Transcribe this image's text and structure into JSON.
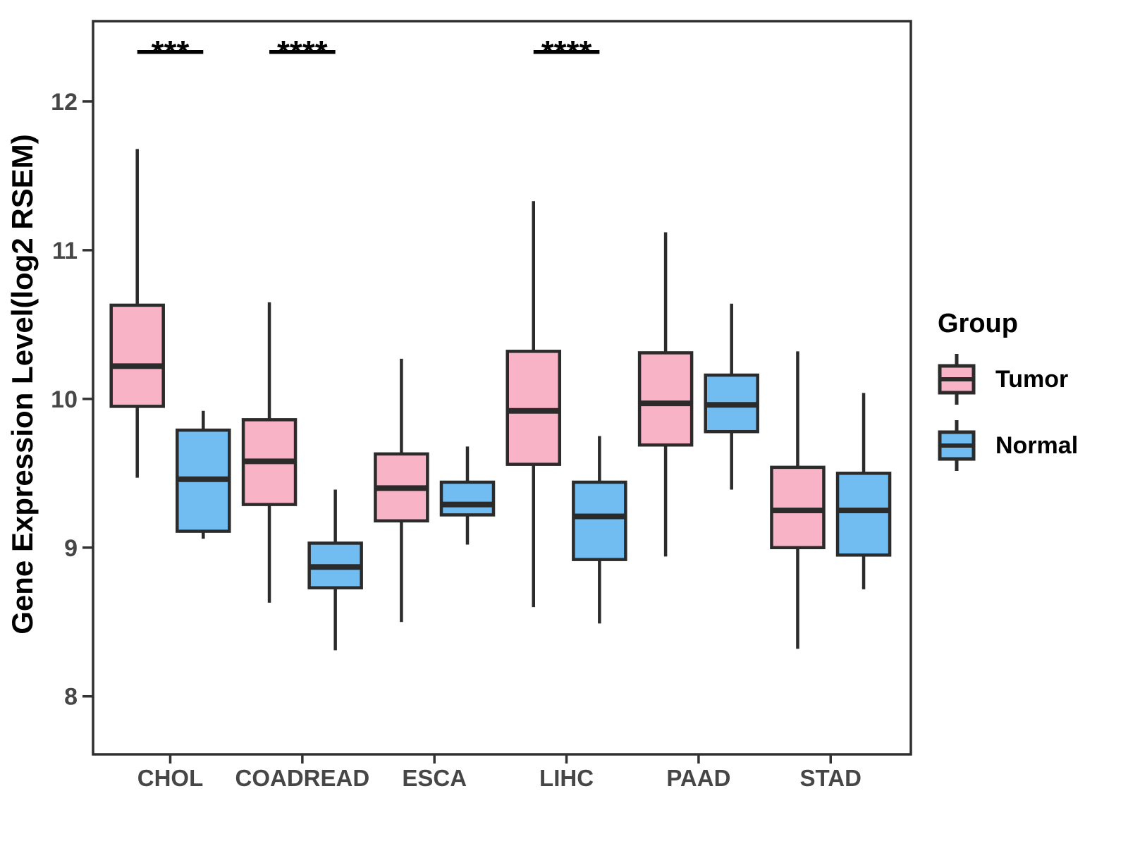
{
  "figure": {
    "ylabel": "Gene Expression Level(log2 RSEM)",
    "legend": {
      "title": "Group",
      "items": [
        {
          "label": "Tumor",
          "color": "#F9B3C6"
        },
        {
          "label": "Normal",
          "color": "#71BDF2"
        }
      ]
    }
  },
  "colors": {
    "box_line": "#2B2B2B",
    "panel_border": "#2F2F2F",
    "tick_mark": "#333333",
    "tick_label": "#464646",
    "annotation": "#000000",
    "background": "#FFFFFF"
  },
  "chart_data": {
    "type": "grouped_boxplot",
    "title": "",
    "xlabel": "",
    "ylabel": "Gene Expression Level(log2 RSEM)",
    "categories": [
      "CHOL",
      "COADREAD",
      "ESCA",
      "LIHC",
      "PAAD",
      "STAD"
    ],
    "groups": [
      "Tumor",
      "Normal"
    ],
    "group_colors": {
      "Tumor": "#F9B3C6",
      "Normal": "#71BDF2"
    },
    "legend_title": "Group",
    "legend_position": "right",
    "grid": false,
    "yticks": [
      8,
      9,
      10,
      11,
      12
    ],
    "ylim": [
      7.61,
      12.54
    ],
    "box_stats_order": [
      "whisker_low",
      "q1",
      "median",
      "q3",
      "whisker_high"
    ],
    "boxes": [
      {
        "category": "CHOL",
        "tumor": [
          9.47,
          9.95,
          10.22,
          10.63,
          11.68
        ],
        "normal": [
          9.06,
          9.11,
          9.46,
          9.79,
          9.92
        ]
      },
      {
        "category": "COADREAD",
        "tumor": [
          8.63,
          9.29,
          9.58,
          9.86,
          10.65
        ],
        "normal": [
          8.31,
          8.73,
          8.87,
          9.03,
          9.39
        ]
      },
      {
        "category": "ESCA",
        "tumor": [
          8.5,
          9.18,
          9.4,
          9.63,
          10.27
        ],
        "normal": [
          9.02,
          9.22,
          9.29,
          9.44,
          9.68
        ]
      },
      {
        "category": "LIHC",
        "tumor": [
          8.6,
          9.56,
          9.92,
          10.32,
          11.33
        ],
        "normal": [
          8.49,
          8.92,
          9.21,
          9.44,
          9.75
        ]
      },
      {
        "category": "PAAD",
        "tumor": [
          8.94,
          9.69,
          9.97,
          10.31,
          11.12
        ],
        "normal": [
          9.39,
          9.78,
          9.96,
          10.16,
          10.64
        ]
      },
      {
        "category": "STAD",
        "tumor": [
          8.32,
          9.0,
          9.25,
          9.54,
          10.32
        ],
        "normal": [
          8.72,
          8.95,
          9.25,
          9.5,
          10.04
        ]
      }
    ],
    "significance": [
      {
        "category": "CHOL",
        "label": "***"
      },
      {
        "category": "COADREAD",
        "label": "****"
      },
      {
        "category": "LIHC",
        "label": "****"
      }
    ]
  }
}
